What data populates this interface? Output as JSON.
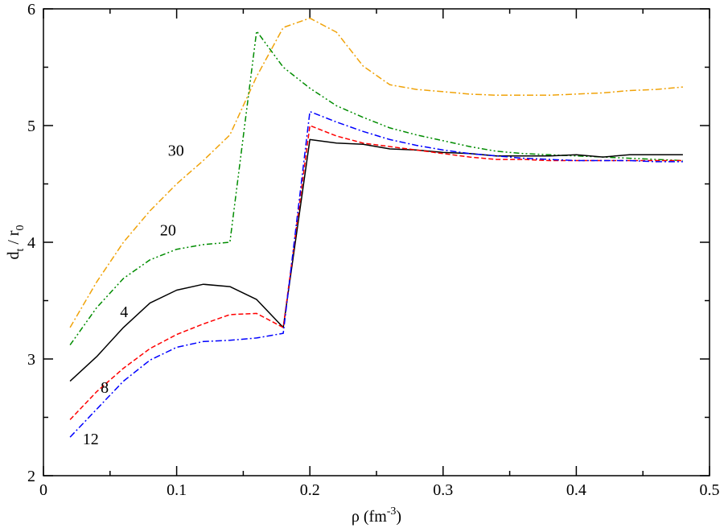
{
  "chart_data": {
    "type": "line",
    "title": "",
    "xlabel": {
      "main": "ρ (fm",
      "sup": "-3",
      "close": ")"
    },
    "ylabel": {
      "main": "d",
      "sub1": "t",
      "mid": " / r",
      "sub2": "0"
    },
    "xlim": [
      0,
      0.5
    ],
    "ylim": [
      2,
      6
    ],
    "xticks": [
      "0",
      "0.1",
      "0.2",
      "0.3",
      "0.4",
      "0.5"
    ],
    "yticks": [
      "2",
      "3",
      "4",
      "5",
      "6"
    ],
    "xtick_values": [
      0,
      0.1,
      0.2,
      0.3,
      0.4,
      0.5
    ],
    "ytick_values": [
      2,
      3,
      4,
      5,
      6
    ],
    "grid": false,
    "series": [
      {
        "label": "30",
        "color": "#f0a30a",
        "dash": "8,3,2,3",
        "x": [
          0.02,
          0.04,
          0.06,
          0.08,
          0.1,
          0.12,
          0.14,
          0.16,
          0.18,
          0.2,
          0.22,
          0.24,
          0.26,
          0.28,
          0.3,
          0.32,
          0.34,
          0.36,
          0.38,
          0.4,
          0.42,
          0.44,
          0.46,
          0.48
        ],
        "y": [
          3.27,
          3.66,
          4.0,
          4.27,
          4.5,
          4.7,
          4.92,
          5.42,
          5.84,
          5.92,
          5.8,
          5.51,
          5.35,
          5.31,
          5.29,
          5.27,
          5.26,
          5.26,
          5.26,
          5.27,
          5.28,
          5.3,
          5.31,
          5.33
        ]
      },
      {
        "label": "20",
        "color": "#008c00",
        "dash": "7,3,2,3,2,3",
        "x": [
          0.02,
          0.04,
          0.06,
          0.08,
          0.1,
          0.12,
          0.14,
          0.16,
          0.18,
          0.2,
          0.22,
          0.24,
          0.26,
          0.28,
          0.3,
          0.32,
          0.34,
          0.36,
          0.38,
          0.4,
          0.42,
          0.44,
          0.46,
          0.48
        ],
        "y": [
          3.12,
          3.44,
          3.69,
          3.85,
          3.94,
          3.98,
          4.0,
          5.81,
          5.5,
          5.32,
          5.17,
          5.07,
          4.98,
          4.92,
          4.87,
          4.82,
          4.78,
          4.76,
          4.75,
          4.74,
          4.73,
          4.72,
          4.71,
          4.7
        ]
      },
      {
        "label": "4",
        "color": "#000000",
        "dash": "",
        "x": [
          0.02,
          0.04,
          0.06,
          0.08,
          0.1,
          0.12,
          0.14,
          0.16,
          0.18,
          0.2,
          0.22,
          0.24,
          0.26,
          0.28,
          0.3,
          0.32,
          0.34,
          0.36,
          0.38,
          0.4,
          0.42,
          0.44,
          0.46,
          0.48
        ],
        "y": [
          2.81,
          3.02,
          3.27,
          3.48,
          3.59,
          3.64,
          3.62,
          3.51,
          3.27,
          4.88,
          4.85,
          4.84,
          4.8,
          4.79,
          4.77,
          4.76,
          4.74,
          4.74,
          4.74,
          4.75,
          4.73,
          4.75,
          4.75,
          4.75
        ]
      },
      {
        "label": "8",
        "color": "#ff0000",
        "dash": "6,3",
        "x": [
          0.02,
          0.04,
          0.06,
          0.08,
          0.1,
          0.12,
          0.14,
          0.16,
          0.18,
          0.2,
          0.22,
          0.24,
          0.26,
          0.28,
          0.3,
          0.32,
          0.34,
          0.36,
          0.38,
          0.4,
          0.42,
          0.44,
          0.46,
          0.48
        ],
        "y": [
          2.48,
          2.72,
          2.92,
          3.09,
          3.21,
          3.3,
          3.38,
          3.39,
          3.27,
          5.0,
          4.91,
          4.85,
          4.82,
          4.79,
          4.76,
          4.73,
          4.71,
          4.71,
          4.7,
          4.7,
          4.7,
          4.7,
          4.7,
          4.7
        ]
      },
      {
        "label": "12",
        "color": "#0000ff",
        "dash": "8,3,2,3",
        "x": [
          0.02,
          0.04,
          0.06,
          0.08,
          0.1,
          0.12,
          0.14,
          0.16,
          0.18,
          0.2,
          0.22,
          0.24,
          0.26,
          0.28,
          0.3,
          0.32,
          0.34,
          0.36,
          0.38,
          0.4,
          0.42,
          0.44,
          0.46,
          0.48
        ],
        "y": [
          2.33,
          2.57,
          2.81,
          2.99,
          3.1,
          3.15,
          3.16,
          3.18,
          3.22,
          5.12,
          5.03,
          4.95,
          4.88,
          4.83,
          4.79,
          4.76,
          4.74,
          4.72,
          4.71,
          4.7,
          4.7,
          4.7,
          4.69,
          4.69
        ]
      }
    ],
    "curve_labels": [
      {
        "text": "30",
        "x": 0.0995,
        "y": 4.74
      },
      {
        "text": "20",
        "x": 0.0935,
        "y": 4.06
      },
      {
        "text": "4",
        "x": 0.0605,
        "y": 3.36
      },
      {
        "text": "8",
        "x": 0.046,
        "y": 2.71
      },
      {
        "text": "12",
        "x": 0.0355,
        "y": 2.27
      }
    ]
  }
}
